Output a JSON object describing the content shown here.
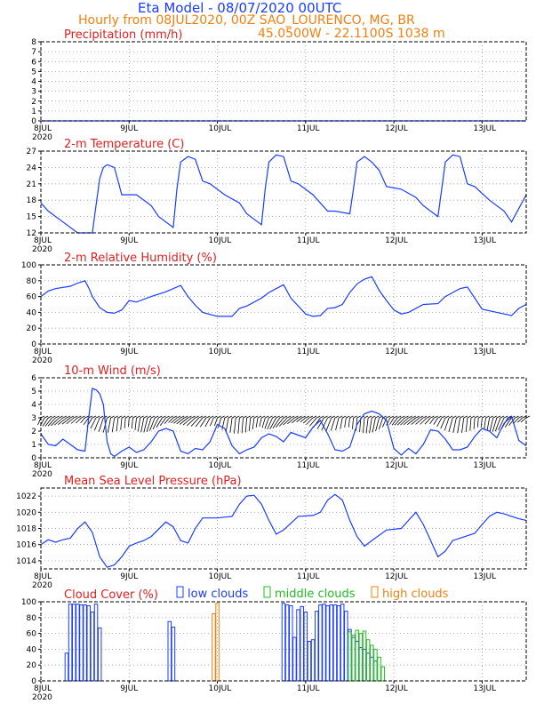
{
  "header": {
    "title": "Eta Model - 08/07/2020 00UTC",
    "subtitle_line": "Hourly from 08JUL2020, 00Z  SAO_LOURENCO, MG, BR",
    "coords_line": "45.0500W - 22.1100S    1038  m"
  },
  "colors": {
    "title": "#1a3cff",
    "subtitle": "#f08010",
    "panel_title": "#e02020",
    "series_line": "#1a3cff",
    "low_clouds": "#1a3cff",
    "middle_clouds": "#22bb22",
    "high_clouds": "#f08010",
    "grid": "#9a9a9a"
  },
  "x_axis": {
    "labels": [
      "8JUL",
      "9JUL",
      "10JUL",
      "11JUL",
      "12JUL",
      "13JUL"
    ],
    "year_label": "2020",
    "range_hours": [
      0,
      132
    ]
  },
  "chart_data": [
    {
      "type": "line",
      "id": "precip",
      "title": "Precipitation (mm/h)",
      "ylim": [
        0,
        8
      ],
      "yticks": [
        "0",
        "1",
        "2",
        "3",
        "4",
        "5",
        "6",
        "7",
        "8"
      ],
      "x": [
        0,
        132
      ],
      "values": [
        0,
        0
      ]
    },
    {
      "type": "line",
      "id": "temp",
      "title": "2-m Temperature (C)",
      "ylim": [
        12,
        27
      ],
      "yticks": [
        "12",
        "15",
        "18",
        "21",
        "24",
        "27"
      ],
      "x": [
        0,
        2,
        6,
        10,
        14,
        15,
        16,
        17,
        18,
        20,
        22,
        26,
        30,
        32,
        36,
        37,
        38,
        40,
        42,
        44,
        46,
        50,
        54,
        56,
        60,
        61,
        62,
        64,
        66,
        68,
        70,
        74,
        78,
        80,
        84,
        85,
        86,
        88,
        90,
        92,
        94,
        98,
        102,
        104,
        108,
        109,
        110,
        112,
        114,
        116,
        118,
        122,
        126,
        128,
        132
      ],
      "values": [
        17.5,
        16,
        14,
        12,
        12,
        17,
        22,
        24,
        24.5,
        24,
        19,
        19,
        17,
        15,
        13,
        20,
        25,
        26,
        25.5,
        21.5,
        21,
        19,
        17.5,
        15.5,
        13.5,
        20,
        25,
        26.3,
        26,
        21.5,
        21,
        19,
        16,
        16,
        15.5,
        20,
        25,
        26,
        25,
        23.5,
        20.5,
        20,
        18.5,
        17,
        15,
        20,
        25,
        26.3,
        26,
        21,
        20.5,
        18,
        16,
        14,
        19
      ]
    },
    {
      "type": "line",
      "id": "rh",
      "title": "2-m Relative Humidity (%)",
      "ylim": [
        0,
        100
      ],
      "yticks": [
        "0",
        "20",
        "40",
        "60",
        "80",
        "100"
      ],
      "x": [
        0,
        2,
        4,
        8,
        10,
        12,
        13,
        14,
        16,
        18,
        20,
        22,
        24,
        26,
        30,
        34,
        36,
        38,
        40,
        42,
        44,
        48,
        52,
        54,
        56,
        60,
        62,
        64,
        66,
        68,
        72,
        74,
        76,
        78,
        80,
        82,
        84,
        86,
        88,
        90,
        92,
        94,
        96,
        98,
        100,
        104,
        108,
        110,
        112,
        114,
        116,
        120,
        124,
        128,
        130,
        132
      ],
      "values": [
        60,
        67,
        70,
        73,
        77,
        80,
        71,
        60,
        46,
        40,
        39,
        43,
        55,
        53,
        60,
        66,
        70,
        74,
        60,
        49,
        40,
        35,
        35,
        45,
        48,
        58,
        65,
        70,
        75,
        58,
        38,
        35,
        36,
        45,
        46,
        50,
        65,
        76,
        82,
        85,
        68,
        55,
        43,
        38,
        40,
        50,
        51,
        60,
        65,
        70,
        72,
        44,
        40,
        36,
        45,
        50
      ]
    },
    {
      "type": "line",
      "id": "wind",
      "title": "10-m Wind (m/s)",
      "ylim": [
        0,
        6
      ],
      "yticks": [
        "0",
        "1",
        "2",
        "3",
        "4",
        "5",
        "6"
      ],
      "x": [
        0,
        2,
        4,
        6,
        8,
        10,
        12,
        13,
        14,
        15,
        16,
        17,
        18,
        19,
        20,
        22,
        24,
        26,
        28,
        30,
        32,
        34,
        36,
        38,
        40,
        42,
        44,
        46,
        48,
        50,
        52,
        54,
        56,
        58,
        60,
        62,
        64,
        66,
        68,
        70,
        72,
        74,
        76,
        78,
        80,
        82,
        84,
        86,
        88,
        90,
        92,
        94,
        96,
        98,
        100,
        102,
        104,
        106,
        108,
        110,
        112,
        114,
        116,
        118,
        120,
        122,
        124,
        126,
        128,
        130,
        132
      ],
      "values": [
        1.8,
        1,
        0.9,
        1.4,
        1,
        0.6,
        0.5,
        3,
        5.2,
        5.1,
        4.8,
        4,
        1.2,
        0.3,
        0.1,
        0.5,
        0.8,
        0.4,
        0.6,
        1.2,
        2,
        2.2,
        2,
        0.5,
        0.3,
        0.7,
        0.6,
        1.2,
        2.5,
        2.2,
        0.9,
        0.3,
        0.6,
        0.8,
        1.5,
        1.8,
        1.6,
        1.2,
        1.9,
        1.7,
        1.5,
        2.3,
        2.8,
        1.8,
        0.6,
        0.5,
        0.8,
        2.5,
        3.3,
        3.5,
        3.3,
        2.8,
        0.7,
        0.2,
        0.7,
        0.3,
        1,
        2.1,
        2,
        1.4,
        0.6,
        0.6,
        0.8,
        1.6,
        2.2,
        2,
        1.5,
        2.6,
        3.1,
        1.3,
        0.9
      ]
    },
    {
      "type": "line",
      "id": "mslp",
      "title": "Mean Sea Level Pressure (hPa)",
      "ylim": [
        1013,
        1023
      ],
      "yticks": [
        "1014",
        "1016",
        "1018",
        "1020",
        "1022"
      ],
      "x": [
        0,
        2,
        4,
        6,
        8,
        10,
        12,
        14,
        16,
        18,
        20,
        22,
        24,
        26,
        28,
        30,
        34,
        36,
        38,
        40,
        42,
        44,
        48,
        52,
        54,
        56,
        58,
        60,
        62,
        64,
        66,
        70,
        74,
        76,
        78,
        80,
        82,
        84,
        86,
        88,
        90,
        94,
        98,
        100,
        102,
        104,
        106,
        108,
        110,
        112,
        114,
        118,
        120,
        122,
        124,
        126,
        128,
        130,
        132
      ],
      "values": [
        1016,
        1016.6,
        1016.3,
        1016.6,
        1016.8,
        1018,
        1018.8,
        1017.5,
        1014.5,
        1013.2,
        1013.5,
        1014.5,
        1015.8,
        1016.2,
        1016.5,
        1017,
        1018.8,
        1018.2,
        1016.5,
        1016.2,
        1018,
        1019.3,
        1019.3,
        1019.5,
        1021,
        1022,
        1022.1,
        1021,
        1019,
        1017.3,
        1017.8,
        1019.5,
        1019.6,
        1020,
        1021.5,
        1022.2,
        1021.5,
        1019,
        1017,
        1015.8,
        1016.5,
        1017.8,
        1018,
        1019,
        1020,
        1018.5,
        1016.5,
        1014.5,
        1015.2,
        1016.5,
        1016.8,
        1017.4,
        1018.5,
        1019.5,
        1020,
        1019.8,
        1019.5,
        1019.2,
        1019
      ]
    },
    {
      "type": "bar",
      "id": "clouds",
      "title": "Cloud Cover (%)",
      "ylim": [
        0,
        100
      ],
      "yticks": [
        "0",
        "20",
        "40",
        "60",
        "80",
        "100"
      ],
      "legend": [
        "low clouds",
        "middle clouds",
        "high clouds"
      ],
      "series": [
        {
          "name": "low clouds",
          "x": [
            7,
            8,
            9,
            10,
            11,
            12,
            13,
            14,
            15,
            16,
            35,
            36,
            66,
            67,
            68,
            69,
            70,
            71,
            72,
            73,
            74,
            75,
            76,
            77,
            78,
            79,
            80,
            81,
            82,
            83,
            84,
            85,
            86,
            87,
            88,
            89,
            90,
            91
          ],
          "values": [
            35,
            97,
            97,
            97,
            96,
            96,
            95,
            87,
            97,
            67,
            75,
            68,
            98,
            96,
            95,
            55,
            90,
            94,
            87,
            50,
            52,
            88,
            96,
            97,
            95,
            96,
            96,
            95,
            97,
            88,
            65,
            55,
            50,
            42,
            40,
            35,
            30,
            25
          ]
        },
        {
          "name": "middle clouds",
          "x": [
            84,
            85,
            86,
            87,
            88,
            89,
            90,
            91,
            92,
            93
          ],
          "values": [
            62,
            58,
            64,
            60,
            63,
            52,
            45,
            40,
            30,
            18
          ]
        },
        {
          "name": "high clouds",
          "x": [
            47,
            48
          ],
          "values": [
            85,
            98
          ]
        }
      ]
    }
  ]
}
